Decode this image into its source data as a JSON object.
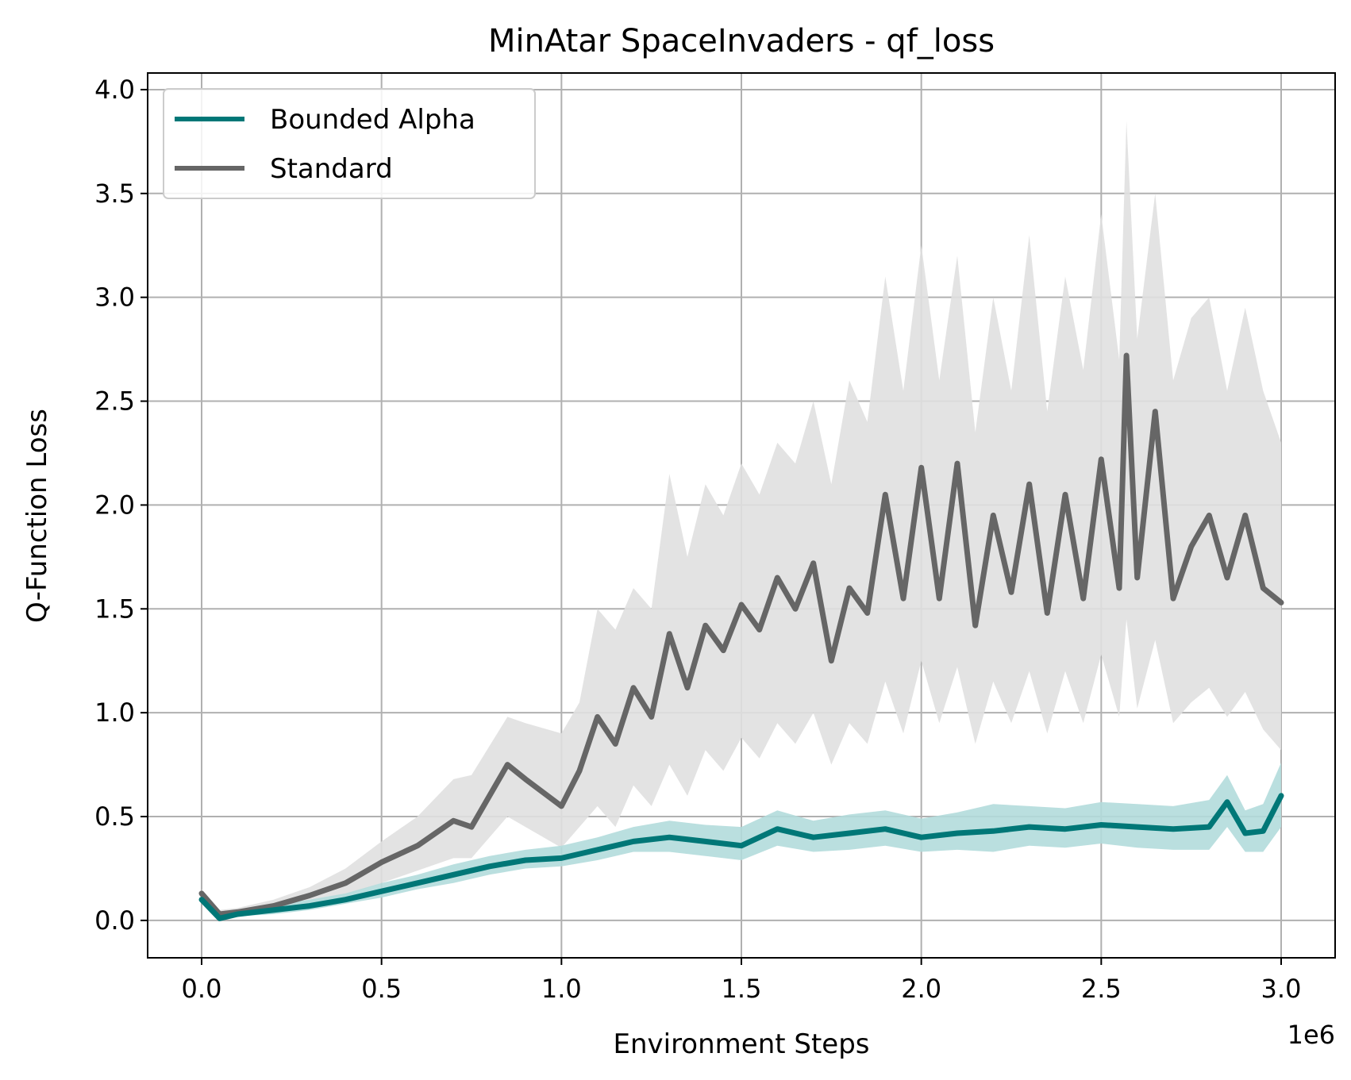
{
  "chart_data": {
    "type": "line",
    "title": "MinAtar SpaceInvaders - qf_loss",
    "xlabel": "Environment Steps",
    "ylabel": "Q-Function Loss",
    "x_offset_label": "1e6",
    "xlim": [
      -0.15,
      3.15
    ],
    "ylim": [
      -0.18,
      4.08
    ],
    "x_ticks": [
      0.0,
      0.5,
      1.0,
      1.5,
      2.0,
      2.5,
      3.0
    ],
    "x_tick_labels": [
      "0.0",
      "0.5",
      "1.0",
      "1.5",
      "2.0",
      "2.5",
      "3.0"
    ],
    "y_ticks": [
      0.0,
      0.5,
      1.0,
      1.5,
      2.0,
      2.5,
      3.0,
      3.5,
      4.0
    ],
    "y_tick_labels": [
      "0.0",
      "0.5",
      "1.0",
      "1.5",
      "2.0",
      "2.5",
      "3.0",
      "3.5",
      "4.0"
    ],
    "grid": true,
    "legend_position": "upper-left",
    "series": [
      {
        "name": "Bounded Alpha",
        "color": "#007777",
        "band_color": "#b2dcdc",
        "x": [
          0.0,
          0.05,
          0.1,
          0.2,
          0.3,
          0.4,
          0.5,
          0.6,
          0.7,
          0.8,
          0.9,
          1.0,
          1.1,
          1.2,
          1.3,
          1.4,
          1.5,
          1.6,
          1.7,
          1.8,
          1.9,
          2.0,
          2.1,
          2.2,
          2.3,
          2.4,
          2.5,
          2.6,
          2.7,
          2.8,
          2.85,
          2.9,
          2.95,
          3.0
        ],
        "mean": [
          0.1,
          0.01,
          0.03,
          0.05,
          0.07,
          0.1,
          0.14,
          0.18,
          0.22,
          0.26,
          0.29,
          0.3,
          0.34,
          0.38,
          0.4,
          0.38,
          0.36,
          0.44,
          0.4,
          0.42,
          0.44,
          0.4,
          0.42,
          0.43,
          0.45,
          0.44,
          0.46,
          0.45,
          0.44,
          0.45,
          0.57,
          0.42,
          0.43,
          0.6
        ],
        "upper": [
          0.12,
          0.04,
          0.05,
          0.07,
          0.1,
          0.13,
          0.18,
          0.22,
          0.27,
          0.31,
          0.34,
          0.36,
          0.4,
          0.45,
          0.48,
          0.46,
          0.45,
          0.53,
          0.48,
          0.51,
          0.53,
          0.49,
          0.52,
          0.56,
          0.55,
          0.54,
          0.57,
          0.56,
          0.55,
          0.58,
          0.7,
          0.53,
          0.56,
          0.76
        ],
        "lower": [
          0.08,
          0.0,
          0.02,
          0.03,
          0.05,
          0.08,
          0.11,
          0.15,
          0.18,
          0.22,
          0.25,
          0.26,
          0.29,
          0.33,
          0.33,
          0.31,
          0.29,
          0.36,
          0.33,
          0.34,
          0.36,
          0.33,
          0.34,
          0.33,
          0.36,
          0.35,
          0.37,
          0.35,
          0.34,
          0.34,
          0.45,
          0.33,
          0.33,
          0.45
        ]
      },
      {
        "name": "Standard",
        "color": "#666666",
        "band_color": "#e0e0e0",
        "x": [
          0.0,
          0.05,
          0.1,
          0.2,
          0.3,
          0.4,
          0.5,
          0.6,
          0.7,
          0.75,
          0.85,
          0.9,
          1.0,
          1.05,
          1.1,
          1.15,
          1.2,
          1.25,
          1.3,
          1.35,
          1.4,
          1.45,
          1.5,
          1.55,
          1.6,
          1.65,
          1.7,
          1.75,
          1.8,
          1.85,
          1.9,
          1.95,
          2.0,
          2.05,
          2.1,
          2.15,
          2.2,
          2.25,
          2.3,
          2.35,
          2.4,
          2.45,
          2.5,
          2.55,
          2.57,
          2.6,
          2.65,
          2.7,
          2.75,
          2.8,
          2.85,
          2.9,
          2.95,
          3.0
        ],
        "mean": [
          0.13,
          0.03,
          0.04,
          0.07,
          0.12,
          0.18,
          0.28,
          0.36,
          0.48,
          0.45,
          0.75,
          0.68,
          0.55,
          0.72,
          0.98,
          0.85,
          1.12,
          0.98,
          1.38,
          1.12,
          1.42,
          1.3,
          1.52,
          1.4,
          1.65,
          1.5,
          1.72,
          1.25,
          1.6,
          1.48,
          2.05,
          1.55,
          2.18,
          1.55,
          2.2,
          1.42,
          1.95,
          1.58,
          2.1,
          1.48,
          2.05,
          1.55,
          2.22,
          1.6,
          2.72,
          1.65,
          2.45,
          1.55,
          1.8,
          1.95,
          1.65,
          1.95,
          1.6,
          1.53
        ],
        "upper": [
          0.15,
          0.05,
          0.06,
          0.1,
          0.16,
          0.25,
          0.38,
          0.5,
          0.68,
          0.7,
          0.98,
          0.95,
          0.9,
          1.05,
          1.5,
          1.4,
          1.6,
          1.5,
          2.15,
          1.75,
          2.1,
          1.95,
          2.2,
          2.05,
          2.3,
          2.2,
          2.5,
          2.1,
          2.6,
          2.4,
          3.1,
          2.55,
          3.25,
          2.6,
          3.2,
          2.35,
          3.0,
          2.55,
          3.3,
          2.45,
          3.1,
          2.65,
          3.4,
          2.7,
          3.85,
          2.8,
          3.5,
          2.6,
          2.9,
          3.0,
          2.55,
          2.95,
          2.55,
          2.3
        ],
        "lower": [
          0.11,
          0.01,
          0.02,
          0.05,
          0.08,
          0.12,
          0.18,
          0.24,
          0.3,
          0.3,
          0.5,
          0.45,
          0.35,
          0.45,
          0.55,
          0.45,
          0.65,
          0.55,
          0.75,
          0.6,
          0.82,
          0.72,
          0.88,
          0.78,
          0.95,
          0.85,
          1.0,
          0.75,
          0.95,
          0.85,
          1.15,
          0.9,
          1.25,
          0.95,
          1.22,
          0.85,
          1.15,
          0.95,
          1.2,
          0.9,
          1.2,
          0.95,
          1.28,
          0.98,
          1.45,
          1.02,
          1.35,
          0.95,
          1.05,
          1.12,
          0.98,
          1.1,
          0.92,
          0.82
        ]
      }
    ]
  }
}
